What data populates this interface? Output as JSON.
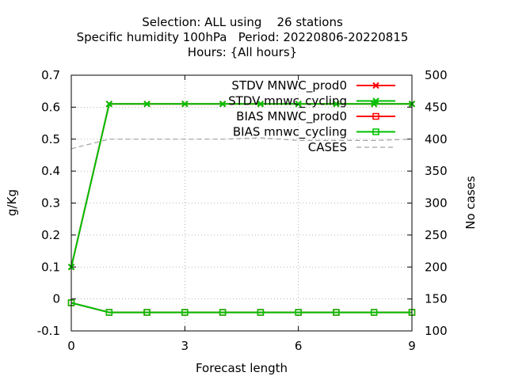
{
  "chart_data": {
    "type": "line",
    "title_lines": [
      "Selection: ALL using    26 stations",
      "Specific humidity 100hPa   Period: 20220806-20220815",
      "Hours: {All hours}"
    ],
    "xlabel": "Forecast length",
    "ylabel": "g/Kg",
    "y2label": "No cases",
    "xlim": [
      0,
      9
    ],
    "ylim": [
      -0.1,
      0.7
    ],
    "y2lim": [
      100,
      500
    ],
    "xticks": [
      0,
      3,
      6,
      9
    ],
    "yticks": [
      -0.1,
      0,
      0.1,
      0.2,
      0.3,
      0.4,
      0.5,
      0.6,
      0.7
    ],
    "y2ticks": [
      100,
      150,
      200,
      250,
      300,
      350,
      400,
      450,
      500
    ],
    "grid": true,
    "legend_position": "top-right",
    "x": [
      0,
      1,
      2,
      3,
      4,
      5,
      6,
      7,
      8,
      9
    ],
    "series": [
      {
        "name": "STDV MNWC_prod0",
        "color": "#ff0000",
        "marker": "x",
        "axis": "y1",
        "values": [
          0.1,
          0.61,
          0.61,
          0.61,
          0.61,
          0.61,
          0.61,
          0.61,
          0.61,
          0.61
        ]
      },
      {
        "name": "STDV mnwc_cycling",
        "color": "#00c000",
        "marker": "x",
        "axis": "y1",
        "values": [
          0.1,
          0.61,
          0.61,
          0.61,
          0.61,
          0.61,
          0.61,
          0.61,
          0.61,
          0.61
        ]
      },
      {
        "name": "BIAS MNWC_prod0",
        "color": "#ff0000",
        "marker": "square",
        "axis": "y1",
        "values": [
          -0.012,
          -0.042,
          -0.042,
          -0.042,
          -0.042,
          -0.042,
          -0.042,
          -0.042,
          -0.042,
          -0.042
        ]
      },
      {
        "name": "BIAS mnwc_cycling",
        "color": "#00c000",
        "marker": "square",
        "axis": "y1",
        "values": [
          -0.012,
          -0.042,
          -0.042,
          -0.042,
          -0.042,
          -0.042,
          -0.042,
          -0.042,
          -0.042,
          -0.042
        ]
      },
      {
        "name": "CASES",
        "color": "#a0a0a0",
        "marker": "none",
        "axis": "y2",
        "dashed": true,
        "values": [
          385,
          400,
          400,
          400,
          400,
          402,
          398,
          398,
          398,
          400
        ]
      }
    ]
  }
}
